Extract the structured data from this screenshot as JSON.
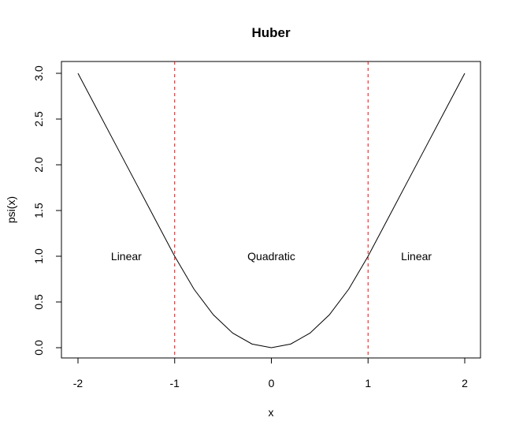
{
  "chart_data": {
    "type": "line",
    "title": "Huber",
    "xlabel": "x",
    "ylabel": "psi(x)",
    "xlim": [
      -2,
      2
    ],
    "ylim": [
      0,
      3
    ],
    "x_ticks": [
      -2,
      -1,
      0,
      1,
      2
    ],
    "x_tick_labels": [
      "-2",
      "-1",
      "0",
      "1",
      "2"
    ],
    "y_ticks": [
      0,
      0.5,
      1,
      1.5,
      2,
      2.5,
      3
    ],
    "y_tick_labels": [
      "0.0",
      "0.5",
      "1.0",
      "1.5",
      "2.0",
      "2.5",
      "3.0"
    ],
    "grid": false,
    "series": [
      {
        "x": [
          -2.0,
          -1.8,
          -1.6,
          -1.4,
          -1.2,
          -1.0,
          -0.8,
          -0.6,
          -0.4,
          -0.2,
          0.0,
          0.2,
          0.4,
          0.6,
          0.8,
          1.0,
          1.2,
          1.4,
          1.6,
          1.8,
          2.0
        ],
        "y": [
          3.0,
          2.6,
          2.2,
          1.8,
          1.4,
          1.0,
          0.64,
          0.36,
          0.16,
          0.04,
          0.0,
          0.04,
          0.16,
          0.36,
          0.64,
          1.0,
          1.4,
          1.8,
          2.2,
          2.6,
          3.0
        ],
        "color": "#000000"
      }
    ],
    "vlines": [
      {
        "x": -1,
        "color": "#ff0000",
        "style": "dashed"
      },
      {
        "x": 1,
        "color": "#ff0000",
        "style": "dashed"
      }
    ],
    "annotations": [
      {
        "text": "Linear",
        "x": -1.5,
        "y": 1.0
      },
      {
        "text": "Quadratic",
        "x": 0.0,
        "y": 1.0
      },
      {
        "text": "Linear",
        "x": 1.5,
        "y": 1.0
      }
    ]
  }
}
